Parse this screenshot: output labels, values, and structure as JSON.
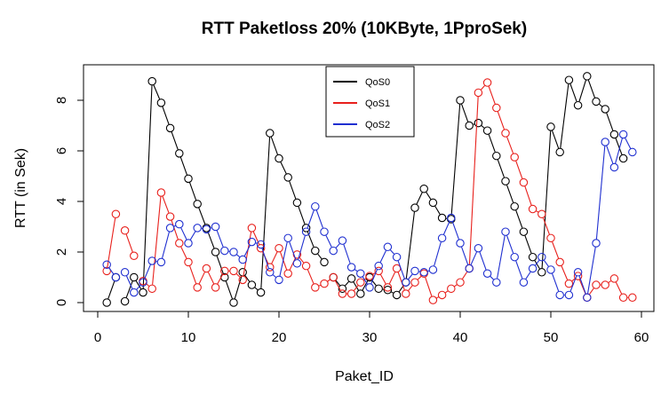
{
  "chart_data": {
    "type": "line",
    "title": "RTT Paketloss 20% (10KByte, 1PproSek)",
    "xlabel": "Paket_ID",
    "ylabel": "RTT (in Sek)",
    "xlim": [
      0,
      60
    ],
    "ylim": [
      -0.35,
      9.3
    ],
    "xticks": [
      0,
      10,
      20,
      30,
      40,
      50,
      60
    ],
    "yticks": [
      0,
      2,
      4,
      6,
      8
    ],
    "grid": false,
    "legend_position": "top-center",
    "series": [
      {
        "name": "QoS0",
        "color": "#000000",
        "segments": [
          [
            [
              1,
              0.0
            ],
            [
              2,
              1.0
            ]
          ],
          [
            [
              3,
              0.05
            ],
            [
              4,
              1.0
            ],
            [
              5,
              0.4
            ],
            [
              6,
              8.75
            ],
            [
              7,
              7.9
            ],
            [
              8,
              6.9
            ],
            [
              9,
              5.9
            ],
            [
              10,
              4.9
            ],
            [
              11,
              3.9
            ],
            [
              12,
              2.95
            ],
            [
              13,
              2.0
            ],
            [
              14,
              1.0
            ],
            [
              15,
              0.0
            ],
            [
              16,
              1.2
            ],
            [
              17,
              0.7
            ],
            [
              18,
              0.4
            ],
            [
              19,
              6.7
            ],
            [
              20,
              5.7
            ],
            [
              21,
              4.95
            ],
            [
              22,
              3.95
            ],
            [
              23,
              2.95
            ],
            [
              24,
              2.05
            ],
            [
              25,
              1.6
            ]
          ],
          [
            [
              26,
              1.0
            ],
            [
              27,
              0.55
            ],
            [
              28,
              0.95
            ],
            [
              29,
              0.35
            ],
            [
              30,
              1.0
            ],
            [
              31,
              0.55
            ],
            [
              32,
              0.5
            ],
            [
              33,
              0.3
            ],
            [
              34,
              0.8
            ],
            [
              35,
              3.75
            ],
            [
              36,
              4.5
            ],
            [
              37,
              3.95
            ],
            [
              38,
              3.35
            ],
            [
              39,
              3.3
            ],
            [
              40,
              8.0
            ],
            [
              41,
              7.0
            ],
            [
              42,
              7.1
            ],
            [
              43,
              6.8
            ],
            [
              44,
              5.8
            ],
            [
              45,
              4.8
            ],
            [
              46,
              3.8
            ],
            [
              47,
              2.8
            ],
            [
              48,
              1.8
            ],
            [
              49,
              1.2
            ],
            [
              50,
              6.95
            ],
            [
              51,
              5.95
            ],
            [
              52,
              8.8
            ],
            [
              53,
              7.8
            ],
            [
              54,
              8.95
            ],
            [
              55,
              7.95
            ],
            [
              56,
              7.65
            ],
            [
              57,
              6.65
            ],
            [
              58,
              5.7
            ]
          ]
        ]
      },
      {
        "name": "QoS1",
        "color": "#e8201c",
        "segments": [
          [
            [
              1,
              1.25
            ],
            [
              2,
              3.5
            ]
          ],
          [
            [
              3,
              2.85
            ],
            [
              4,
              1.85
            ]
          ],
          [
            [
              5,
              0.85
            ],
            [
              6,
              0.55
            ],
            [
              7,
              4.35
            ],
            [
              8,
              3.4
            ],
            [
              9,
              2.35
            ],
            [
              10,
              1.6
            ],
            [
              11,
              0.6
            ],
            [
              12,
              1.35
            ],
            [
              13,
              0.6
            ],
            [
              14,
              1.25
            ],
            [
              15,
              1.25
            ],
            [
              16,
              0.9
            ],
            [
              17,
              2.95
            ],
            [
              18,
              2.15
            ],
            [
              19,
              1.4
            ],
            [
              20,
              2.15
            ],
            [
              21,
              1.15
            ],
            [
              22,
              1.9
            ],
            [
              23,
              1.45
            ],
            [
              24,
              0.6
            ],
            [
              25,
              0.75
            ],
            [
              26,
              1.0
            ],
            [
              27,
              0.35
            ],
            [
              28,
              0.35
            ],
            [
              29,
              0.8
            ],
            [
              30,
              1.05
            ],
            [
              31,
              1.25
            ],
            [
              32,
              0.6
            ],
            [
              33,
              1.35
            ],
            [
              34,
              0.35
            ],
            [
              35,
              0.8
            ],
            [
              36,
              1.15
            ],
            [
              37,
              0.1
            ],
            [
              38,
              0.3
            ],
            [
              39,
              0.55
            ],
            [
              40,
              0.8
            ],
            [
              41,
              1.35
            ],
            [
              42,
              8.3
            ],
            [
              43,
              8.7
            ],
            [
              44,
              7.7
            ],
            [
              45,
              6.7
            ],
            [
              46,
              5.75
            ],
            [
              47,
              4.75
            ],
            [
              48,
              3.7
            ],
            [
              49,
              3.5
            ],
            [
              50,
              2.55
            ],
            [
              51,
              1.6
            ],
            [
              52,
              0.75
            ],
            [
              53,
              1.05
            ],
            [
              54,
              0.2
            ],
            [
              55,
              0.7
            ],
            [
              56,
              0.7
            ],
            [
              57,
              0.95
            ],
            [
              58,
              0.2
            ],
            [
              59,
              0.2
            ]
          ]
        ]
      },
      {
        "name": "QoS2",
        "color": "#1f2fd0",
        "segments": [
          [
            [
              1,
              1.5
            ],
            [
              2,
              1.0
            ]
          ],
          [
            [
              3,
              1.2
            ],
            [
              4,
              0.4
            ],
            [
              5,
              0.8
            ],
            [
              6,
              1.65
            ],
            [
              7,
              1.6
            ],
            [
              8,
              2.95
            ],
            [
              9,
              3.1
            ],
            [
              10,
              2.35
            ],
            [
              11,
              2.95
            ],
            [
              12,
              2.9
            ],
            [
              13,
              3.0
            ],
            [
              14,
              2.05
            ],
            [
              15,
              2.0
            ],
            [
              16,
              1.7
            ],
            [
              17,
              2.4
            ],
            [
              18,
              2.3
            ],
            [
              19,
              1.2
            ],
            [
              20,
              0.9
            ],
            [
              21,
              2.55
            ],
            [
              22,
              1.55
            ],
            [
              23,
              2.8
            ],
            [
              24,
              3.8
            ],
            [
              25,
              2.8
            ],
            [
              26,
              2.05
            ],
            [
              27,
              2.45
            ],
            [
              28,
              1.4
            ],
            [
              29,
              1.15
            ],
            [
              30,
              0.6
            ],
            [
              31,
              1.45
            ],
            [
              32,
              2.2
            ],
            [
              33,
              1.8
            ],
            [
              34,
              0.8
            ],
            [
              35,
              1.25
            ],
            [
              36,
              1.2
            ],
            [
              37,
              1.3
            ],
            [
              38,
              2.55
            ],
            [
              39,
              3.35
            ],
            [
              40,
              2.35
            ],
            [
              41,
              1.35
            ],
            [
              42,
              2.15
            ],
            [
              43,
              1.15
            ],
            [
              44,
              0.8
            ],
            [
              45,
              2.8
            ],
            [
              46,
              1.8
            ],
            [
              47,
              0.8
            ],
            [
              48,
              1.35
            ],
            [
              49,
              1.8
            ],
            [
              50,
              1.3
            ],
            [
              51,
              0.3
            ],
            [
              52,
              0.3
            ],
            [
              53,
              1.2
            ],
            [
              54,
              0.2
            ],
            [
              55,
              2.35
            ],
            [
              56,
              6.35
            ],
            [
              57,
              5.35
            ],
            [
              58,
              6.65
            ],
            [
              59,
              5.95
            ]
          ]
        ]
      }
    ]
  }
}
